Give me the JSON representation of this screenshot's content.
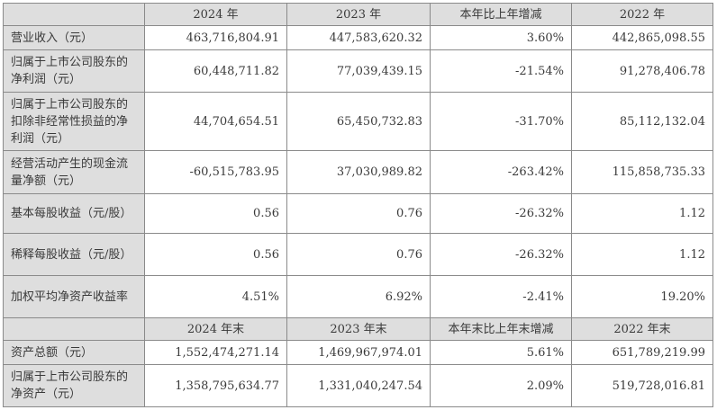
{
  "header1": [
    "",
    "2024 年",
    "2023 年",
    "本年比上年增减",
    "2022 年"
  ],
  "rows1": [
    {
      "label": "营业收入（元）",
      "values": [
        "463,716,804.91",
        "447,583,620.32",
        "3.60%",
        "442,865,098.55"
      ]
    },
    {
      "label": "归属于上市公司股东的净利润（元）",
      "values": [
        "60,448,711.82",
        "77,039,439.15",
        "-21.54%",
        "91,278,406.78"
      ]
    },
    {
      "label": "归属于上市公司股东的扣除非经常性损益的净利润（元）",
      "values": [
        "44,704,654.51",
        "65,450,732.83",
        "-31.70%",
        "85,112,132.04"
      ]
    },
    {
      "label": "经营活动产生的现金流量净额（元）",
      "values": [
        "-60,515,783.95",
        "37,030,989.82",
        "-263.42%",
        "115,858,735.33"
      ]
    },
    {
      "label": "基本每股收益（元/股）",
      "values": [
        "0.56",
        "0.76",
        "-26.32%",
        "1.12"
      ]
    },
    {
      "label": "稀释每股收益（元/股）",
      "values": [
        "0.56",
        "0.76",
        "-26.32%",
        "1.12"
      ]
    },
    {
      "label": "加权平均净资产收益率",
      "values": [
        "4.51%",
        "6.92%",
        "-2.41%",
        "19.20%"
      ]
    }
  ],
  "header2": [
    "",
    "2024 年末",
    "2023 年末",
    "本年末比上年末增减",
    "2022 年末"
  ],
  "rows2": [
    {
      "label": "资产总额（元）",
      "values": [
        "1,552,474,271.14",
        "1,469,967,974.01",
        "5.61%",
        "651,789,219.99"
      ]
    },
    {
      "label": "归属于上市公司股东的净资产（元）",
      "values": [
        "1,358,795,634.77",
        "1,331,040,247.54",
        "2.09%",
        "519,728,016.81"
      ]
    }
  ]
}
